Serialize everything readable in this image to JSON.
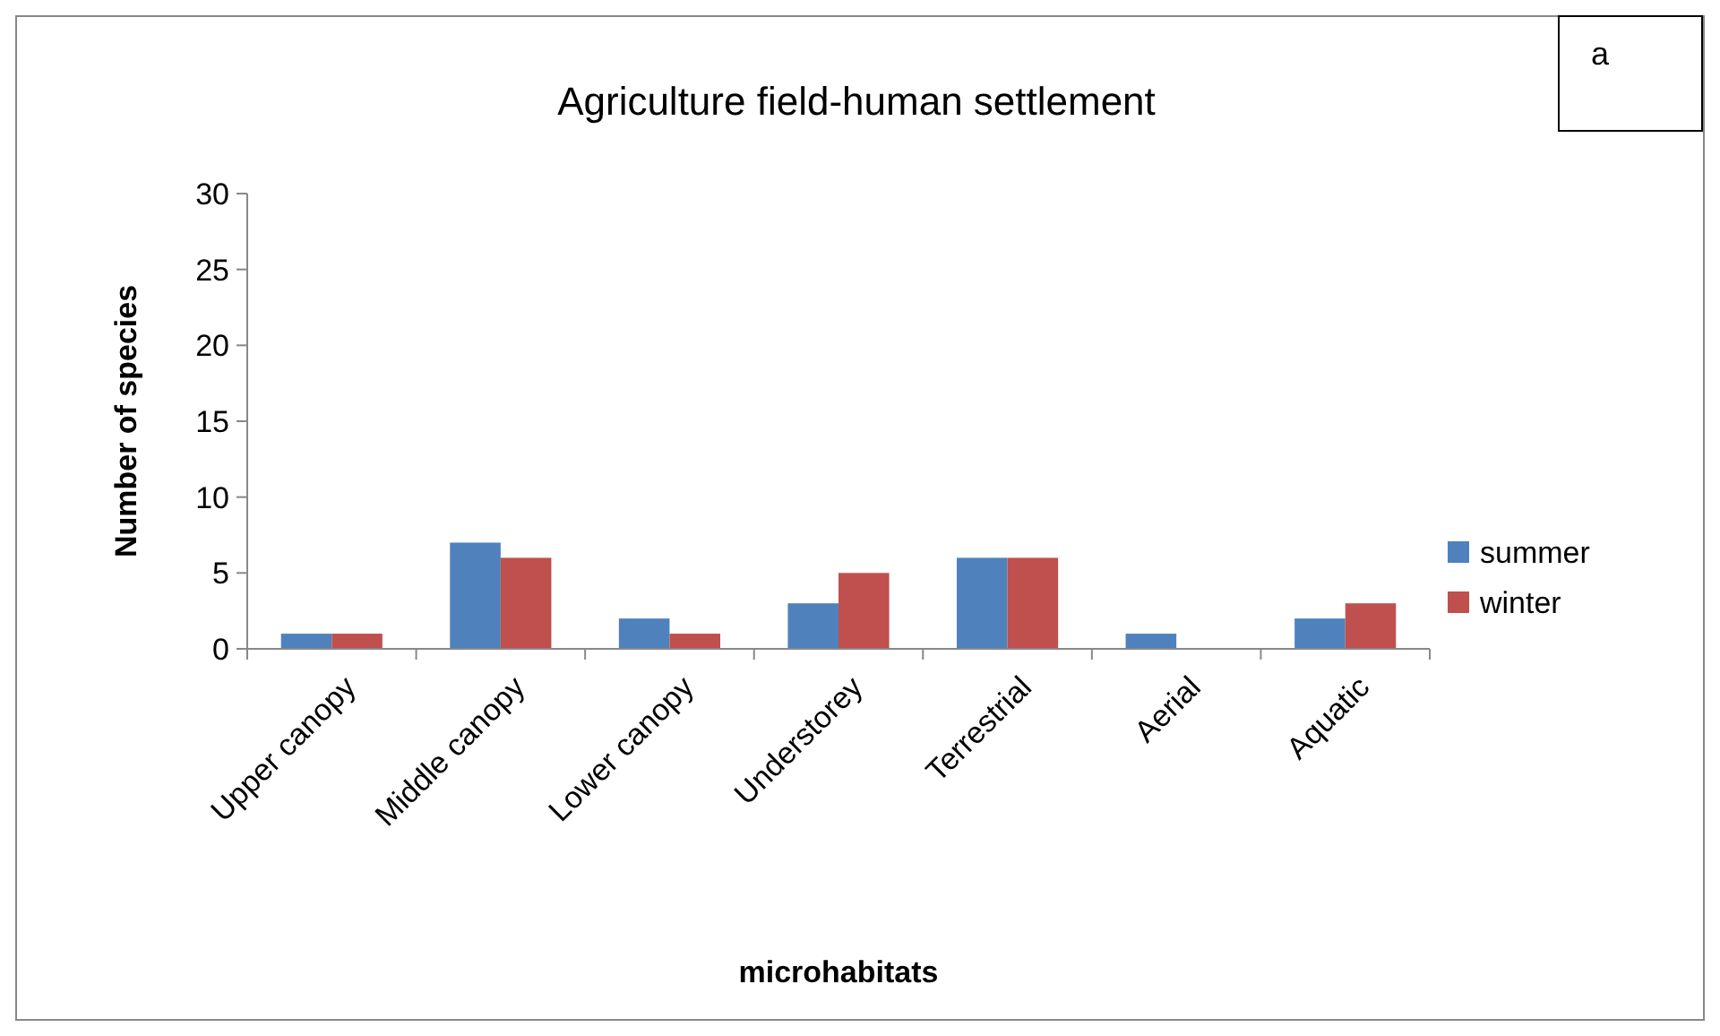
{
  "chart_data": {
    "type": "bar",
    "title": "Agriculture field-human settlement",
    "xlabel": "microhabitats",
    "ylabel": "Number of species",
    "annotations": [
      "a"
    ],
    "categories": [
      "Upper canopy",
      "Middle canopy",
      "Lower canopy",
      "Understorey",
      "Terrestrial",
      "Aerial",
      "Aquatic"
    ],
    "series": [
      {
        "name": "summer",
        "color": "#4f81bd",
        "values": [
          1,
          7,
          2,
          3,
          6,
          1,
          2
        ]
      },
      {
        "name": "winter",
        "color": "#c0504d",
        "values": [
          1,
          6,
          1,
          5,
          6,
          0,
          3
        ]
      }
    ],
    "ylim": [
      0,
      30
    ],
    "yticks": [
      0,
      5,
      10,
      15,
      20,
      25,
      30
    ],
    "grid": false,
    "legend": "right"
  }
}
